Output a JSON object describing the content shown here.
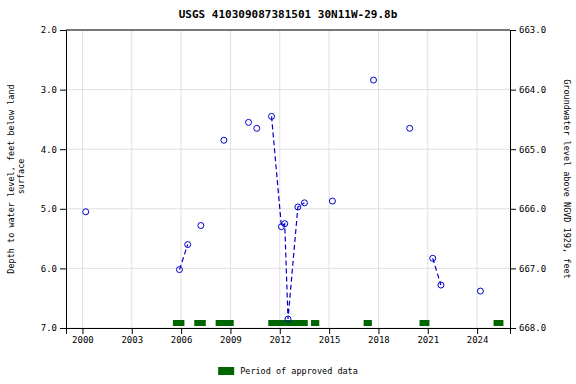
{
  "chart_data": {
    "type": "scatter",
    "title": "USGS 410309087381501 30N11W-29.8b",
    "y_label": "Depth to water level, feet below land\n surface",
    "y2_label": "Groundwater level above NGVD 1929, feet",
    "xlim": [
      1999,
      2026
    ],
    "xticks": [
      2000,
      2003,
      2006,
      2009,
      2012,
      2015,
      2018,
      2021,
      2024
    ],
    "ylim": [
      7.0,
      2.0
    ],
    "yticks": [
      {
        "value": 2.0,
        "label": "2.0"
      },
      {
        "value": 3.0,
        "label": "3.0"
      },
      {
        "value": 4.0,
        "label": "4.0"
      },
      {
        "value": 5.0,
        "label": "5.0"
      },
      {
        "value": 6.0,
        "label": "6.0"
      },
      {
        "value": 7.0,
        "label": "7.0"
      }
    ],
    "y2lim": [
      668.0,
      663.0
    ],
    "y2ticks": [
      {
        "value": 668.0,
        "label": "668.0"
      },
      {
        "value": 667.0,
        "label": "667.0"
      },
      {
        "value": 666.0,
        "label": "666.0"
      },
      {
        "value": 665.0,
        "label": "665.0"
      },
      {
        "value": 664.0,
        "label": "664.0"
      },
      {
        "value": 663.0,
        "label": "663.0"
      }
    ],
    "grid": true,
    "legend": "bottom",
    "series": [
      {
        "type": "scatter",
        "marker": "open_circle",
        "color": "#0000cc",
        "x": [
          2000.2,
          2005.9,
          2006.4,
          2007.2,
          2008.6,
          2010.1,
          2010.6,
          2011.5,
          2012.1,
          2012.3,
          2012.5,
          2013.1,
          2013.5,
          2015.2,
          2017.7,
          2019.9,
          2021.3,
          2021.8,
          2024.2
        ],
        "values": [
          5.05,
          6.02,
          5.6,
          5.28,
          3.85,
          3.55,
          3.65,
          3.45,
          5.3,
          5.25,
          6.85,
          4.97,
          4.9,
          4.87,
          2.84,
          3.65,
          5.83,
          6.28,
          6.38
        ]
      },
      {
        "type": "line",
        "line_style": "dashed",
        "color": "#0000cc",
        "x": [
          2005.9,
          2006.4,
          null,
          2011.5,
          2012.1,
          2012.3,
          2012.5,
          2013.1,
          2013.5,
          null,
          2021.3,
          2021.8
        ],
        "values": [
          6.02,
          5.6,
          null,
          3.45,
          5.3,
          5.25,
          6.85,
          4.97,
          4.9,
          null,
          5.83,
          6.28
        ]
      },
      {
        "type": "span",
        "name": "Period of approved data",
        "color": "#006600",
        "starts": [
          2005.5,
          2006.8,
          2008.1,
          2011.3,
          2013.9,
          2017.1,
          2020.5,
          2025.0
        ],
        "ends": [
          2006.2,
          2007.5,
          2009.2,
          2013.7,
          2014.4,
          2017.6,
          2021.1,
          2025.6
        ]
      }
    ]
  }
}
